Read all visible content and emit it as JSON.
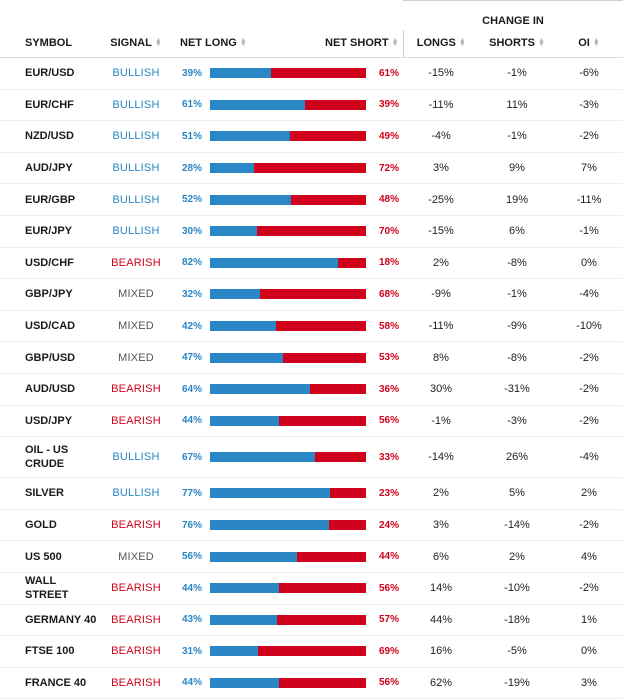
{
  "header": {
    "change_group": "CHANGE IN",
    "symbol": "SYMBOL",
    "signal": "SIGNAL",
    "net_long": "NET LONG",
    "net_short": "NET SHORT",
    "longs": "LONGS",
    "shorts": "SHORTS",
    "oi": "OI",
    "sort_icon": "sort-arrows",
    "sort_up_glyph": "▲",
    "sort_down_glyph": "▼"
  },
  "colors": {
    "long": "#2b86c5",
    "short": "#d0021b",
    "mixed": "#555555"
  },
  "rows": [
    {
      "symbol": "EUR/USD",
      "signal": "BULLISH",
      "long": 39,
      "long_pct": "39%",
      "short_pct": "61%",
      "longs": "-15%",
      "shorts": "-1%",
      "oi": "-6%"
    },
    {
      "symbol": "EUR/CHF",
      "signal": "BULLISH",
      "long": 61,
      "long_pct": "61%",
      "short_pct": "39%",
      "longs": "-11%",
      "shorts": "11%",
      "oi": "-3%"
    },
    {
      "symbol": "NZD/USD",
      "signal": "BULLISH",
      "long": 51,
      "long_pct": "51%",
      "short_pct": "49%",
      "longs": "-4%",
      "shorts": "-1%",
      "oi": "-2%"
    },
    {
      "symbol": "AUD/JPY",
      "signal": "BULLISH",
      "long": 28,
      "long_pct": "28%",
      "short_pct": "72%",
      "longs": "3%",
      "shorts": "9%",
      "oi": "7%"
    },
    {
      "symbol": "EUR/GBP",
      "signal": "BULLISH",
      "long": 52,
      "long_pct": "52%",
      "short_pct": "48%",
      "longs": "-25%",
      "shorts": "19%",
      "oi": "-11%"
    },
    {
      "symbol": "EUR/JPY",
      "signal": "BULLISH",
      "long": 30,
      "long_pct": "30%",
      "short_pct": "70%",
      "longs": "-15%",
      "shorts": "6%",
      "oi": "-1%"
    },
    {
      "symbol": "USD/CHF",
      "signal": "BEARISH",
      "long": 82,
      "long_pct": "82%",
      "short_pct": "18%",
      "longs": "2%",
      "shorts": "-8%",
      "oi": "0%"
    },
    {
      "symbol": "GBP/JPY",
      "signal": "MIXED",
      "long": 32,
      "long_pct": "32%",
      "short_pct": "68%",
      "longs": "-9%",
      "shorts": "-1%",
      "oi": "-4%"
    },
    {
      "symbol": "USD/CAD",
      "signal": "MIXED",
      "long": 42,
      "long_pct": "42%",
      "short_pct": "58%",
      "longs": "-11%",
      "shorts": "-9%",
      "oi": "-10%"
    },
    {
      "symbol": "GBP/USD",
      "signal": "MIXED",
      "long": 47,
      "long_pct": "47%",
      "short_pct": "53%",
      "longs": "8%",
      "shorts": "-8%",
      "oi": "-2%"
    },
    {
      "symbol": "AUD/USD",
      "signal": "BEARISH",
      "long": 64,
      "long_pct": "64%",
      "short_pct": "36%",
      "longs": "30%",
      "shorts": "-31%",
      "oi": "-2%"
    },
    {
      "symbol": "USD/JPY",
      "signal": "BEARISH",
      "long": 44,
      "long_pct": "44%",
      "short_pct": "56%",
      "longs": "-1%",
      "shorts": "-3%",
      "oi": "-2%"
    },
    {
      "symbol": "OIL - US CRUDE",
      "signal": "BULLISH",
      "long": 67,
      "long_pct": "67%",
      "short_pct": "33%",
      "longs": "-14%",
      "shorts": "26%",
      "oi": "-4%"
    },
    {
      "symbol": "SILVER",
      "signal": "BULLISH",
      "long": 77,
      "long_pct": "77%",
      "short_pct": "23%",
      "longs": "2%",
      "shorts": "5%",
      "oi": "2%"
    },
    {
      "symbol": "GOLD",
      "signal": "BEARISH",
      "long": 76,
      "long_pct": "76%",
      "short_pct": "24%",
      "longs": "3%",
      "shorts": "-14%",
      "oi": "-2%"
    },
    {
      "symbol": "US 500",
      "signal": "MIXED",
      "long": 56,
      "long_pct": "56%",
      "short_pct": "44%",
      "longs": "6%",
      "shorts": "2%",
      "oi": "4%"
    },
    {
      "symbol": "WALL STREET",
      "signal": "BEARISH",
      "long": 44,
      "long_pct": "44%",
      "short_pct": "56%",
      "longs": "14%",
      "shorts": "-10%",
      "oi": "-2%"
    },
    {
      "symbol": "GERMANY 40",
      "signal": "BEARISH",
      "long": 43,
      "long_pct": "43%",
      "short_pct": "57%",
      "longs": "44%",
      "shorts": "-18%",
      "oi": "1%"
    },
    {
      "symbol": "FTSE 100",
      "signal": "BEARISH",
      "long": 31,
      "long_pct": "31%",
      "short_pct": "69%",
      "longs": "16%",
      "shorts": "-5%",
      "oi": "0%"
    },
    {
      "symbol": "FRANCE 40",
      "signal": "BEARISH",
      "long": 44,
      "long_pct": "44%",
      "short_pct": "56%",
      "longs": "62%",
      "shorts": "-19%",
      "oi": "3%"
    }
  ]
}
